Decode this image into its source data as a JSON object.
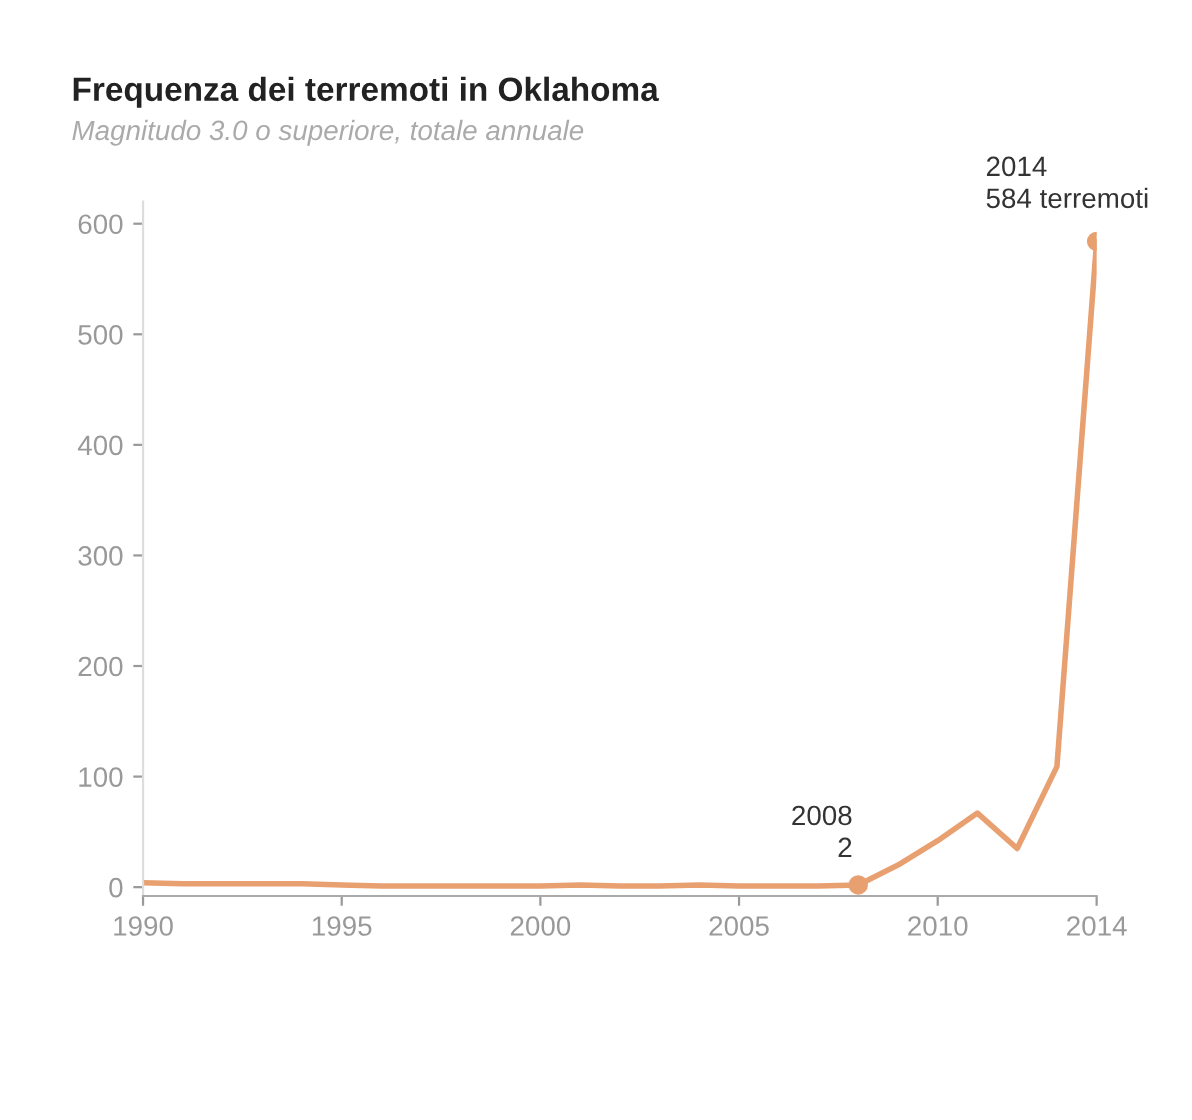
{
  "chart_data": {
    "type": "line",
    "title": "Frequenza dei terremoti in Oklahoma",
    "subtitle": "Magnitudo 3.0 o superiore, totale annuale",
    "x": [
      1990,
      1991,
      1992,
      1993,
      1994,
      1995,
      1996,
      1997,
      1998,
      1999,
      2000,
      2001,
      2002,
      2003,
      2004,
      2005,
      2006,
      2007,
      2008,
      2009,
      2010,
      2011,
      2012,
      2013,
      2014
    ],
    "series": [
      {
        "color": "#e8a070",
        "values": [
          4,
          3,
          3,
          3,
          3,
          2,
          1,
          1,
          1,
          1,
          1,
          2,
          1,
          1,
          2,
          1,
          1,
          1,
          2,
          20,
          42,
          67,
          35,
          109,
          584
        ]
      }
    ],
    "xlim": [
      1990,
      2014
    ],
    "xticks": [
      1990,
      1995,
      2000,
      2005,
      2010,
      2014
    ],
    "ylim": [
      -8,
      620
    ],
    "yticks": [
      0,
      100,
      200,
      300,
      400,
      500,
      600
    ],
    "grid": false,
    "marker": "none",
    "line_style": "solid",
    "annotations": [
      {
        "text": "2008\n2",
        "x": 2008,
        "y": 2
      },
      {
        "text": "2014\n584 terremoti",
        "x": 2014,
        "y": 584
      }
    ]
  }
}
